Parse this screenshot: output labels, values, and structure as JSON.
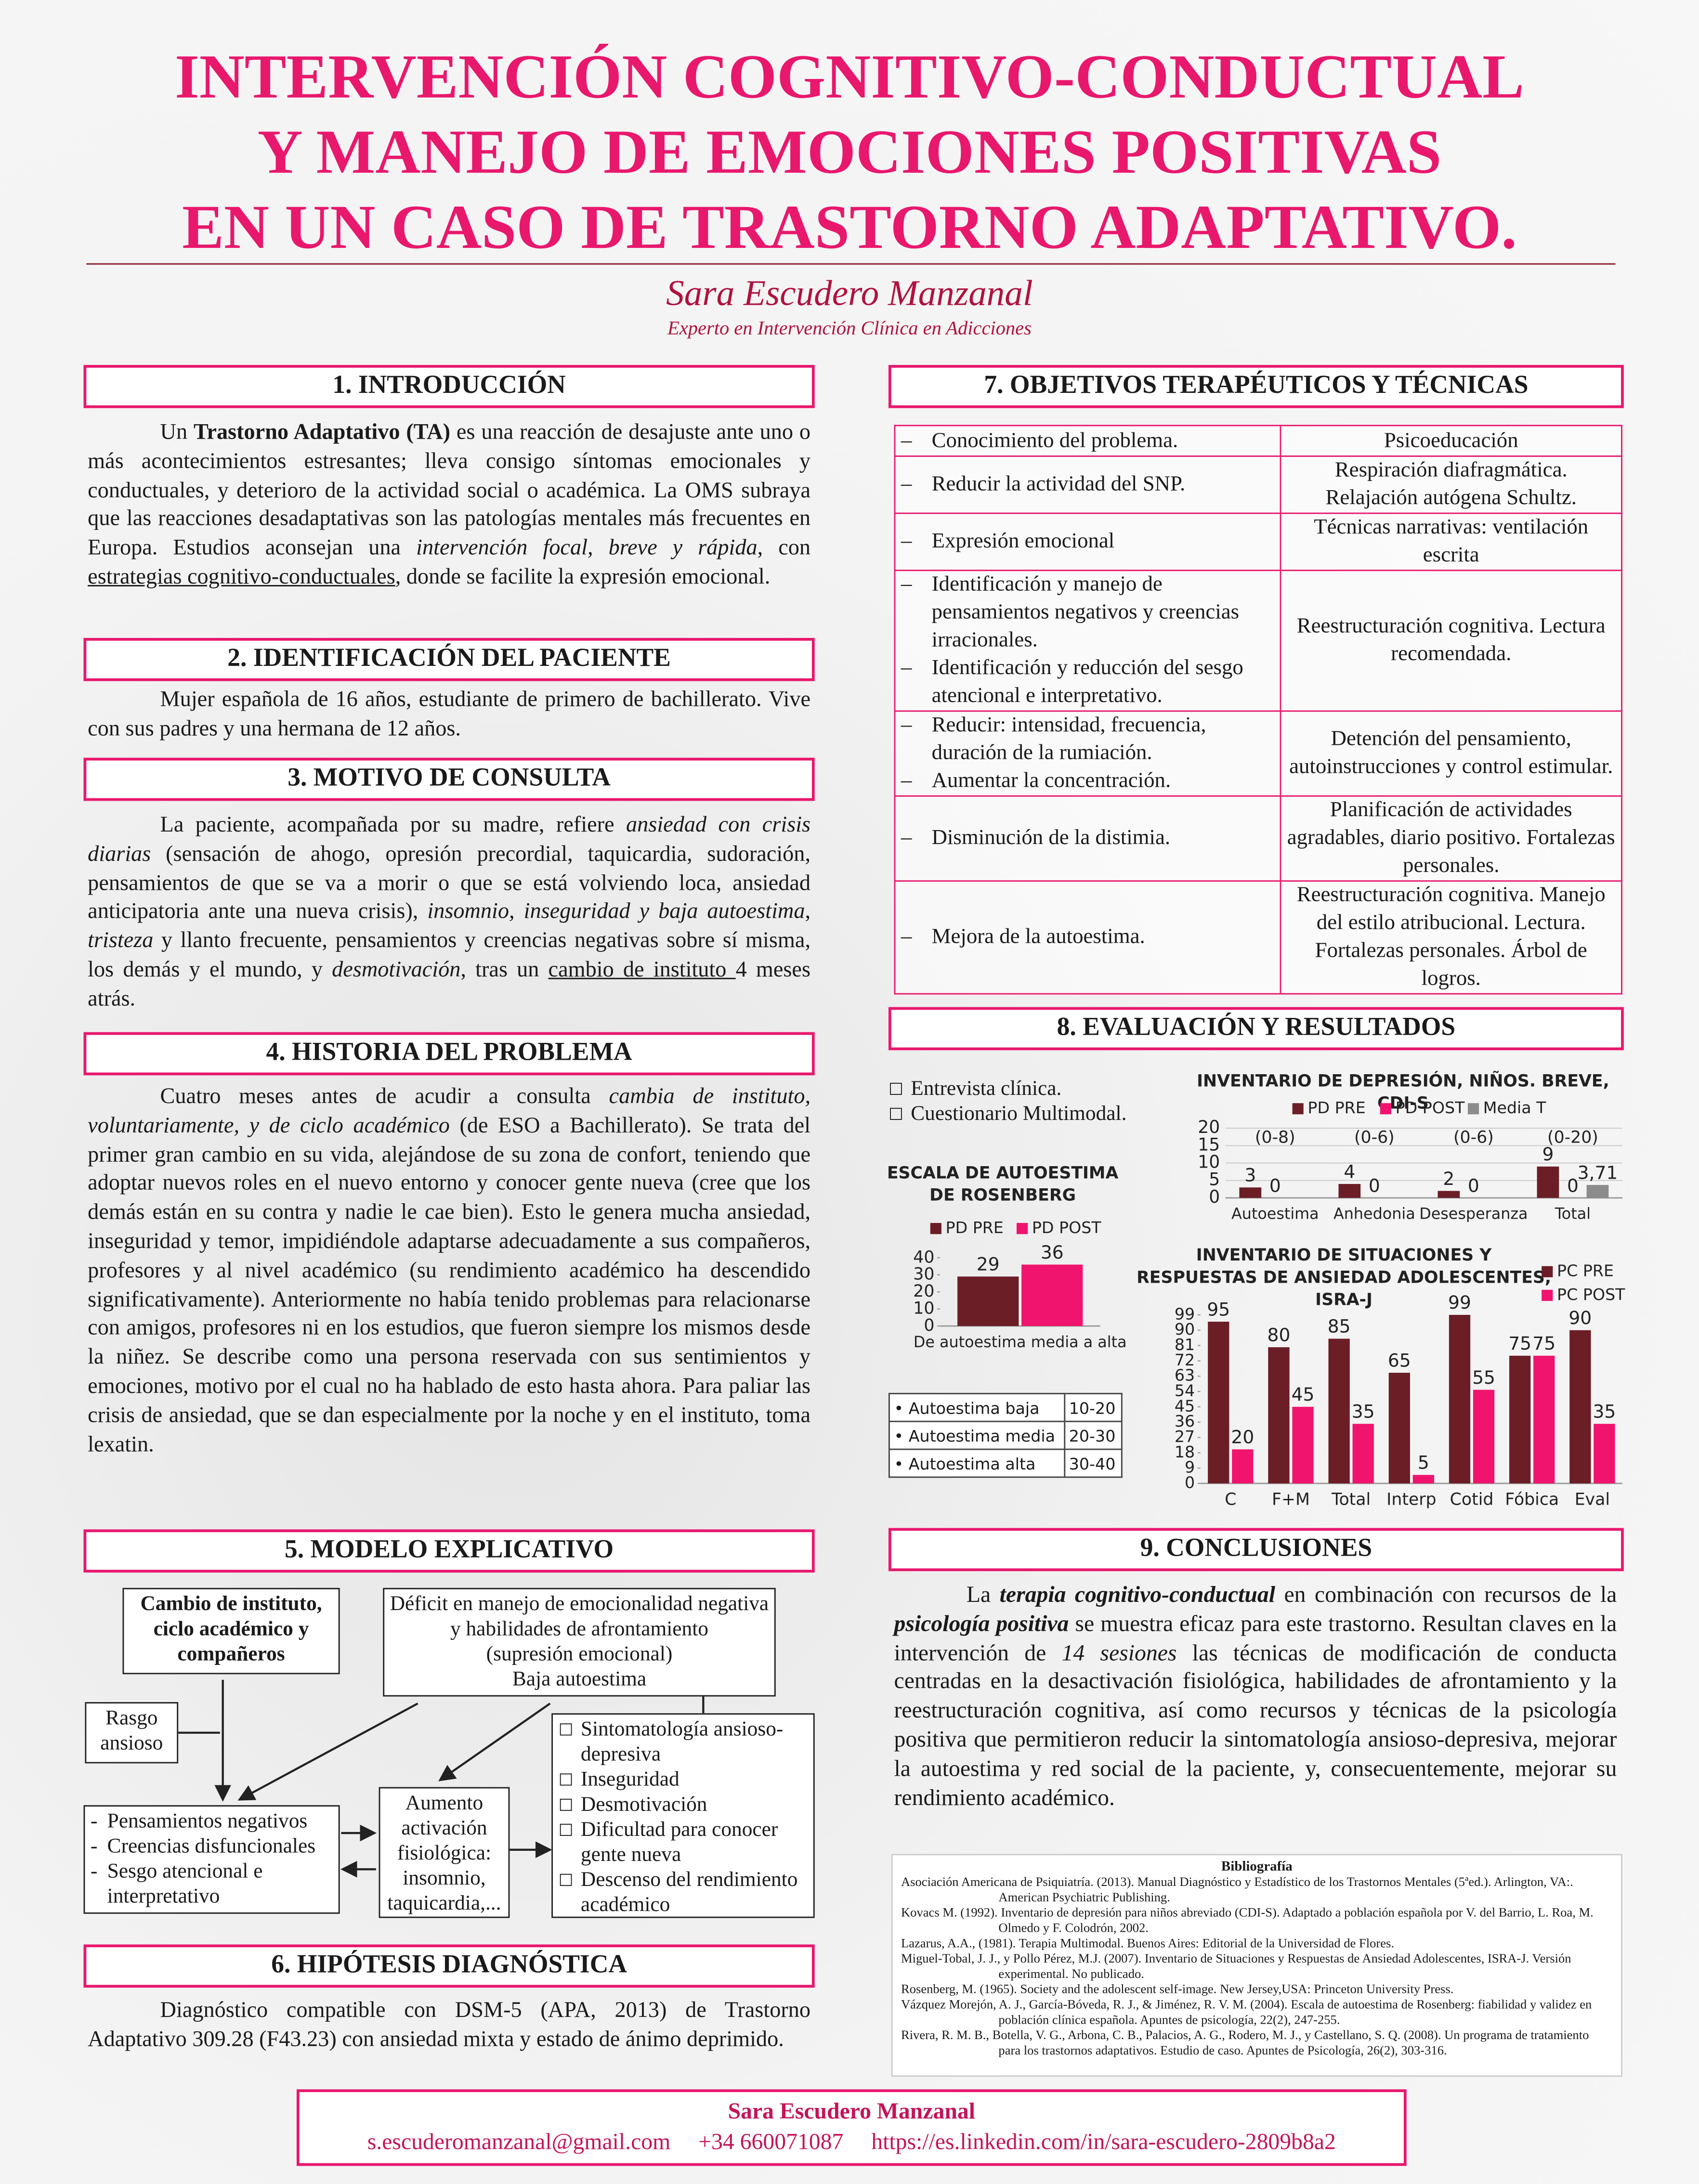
{
  "header": {
    "title_lines": [
      "INTERVENCIÓN COGNITIVO-CONDUCTUAL",
      "Y MANEJO DE EMOCIONES POSITIVAS",
      "EN UN CASO DE TRASTORNO ADAPTATIVO."
    ],
    "author": "Sara Escudero Manzanal",
    "affiliation": "Experto en Intervención Clínica en Adicciones"
  },
  "sections": {
    "intro": {
      "heading": "1. INTRODUCCIÓN",
      "runs": [
        "Un ",
        "Trastorno Adaptativo (TA)",
        " es una reacción de desajuste ante uno o más acontecimientos estresantes; lleva consigo  síntomas emocionales y conductuales, y deterioro de la actividad social o académica. La OMS subraya que las reacciones desadaptativas son las patologías mentales más frecuentes en Europa. Estudios aconsejan una ",
        "intervención focal, breve y rápida",
        ", con ",
        "estrategias cognitivo-conductuales",
        ", donde se facilite la expresión emocional."
      ]
    },
    "patient": {
      "heading": "2. IDENTIFICACIÓN DEL PACIENTE",
      "runs": [
        "Mujer española de 16 años, estudiante de primero de bachillerato. Vive con sus padres y una hermana de 12 años."
      ]
    },
    "consult": {
      "heading": "3. MOTIVO DE CONSULTA",
      "runs": [
        "La paciente, acompañada por su madre, refiere ",
        "ansiedad con crisis diarias",
        " (sensación de ahogo, opresión precordial, taquicardia, sudoración, pensamientos de que se va a morir o que se está volviendo loca, ansiedad anticipatoria ante una nueva crisis), ",
        "insomnio, inseguridad y baja autoestima",
        ", ",
        "tristeza",
        " y llanto frecuente, pensamientos y creencias negativas sobre sí misma, los demás y el mundo, y ",
        "desmotivación",
        ", tras un ",
        "cambio de instituto ",
        "4 meses atrás."
      ]
    },
    "history": {
      "heading": "4. HISTORIA DEL PROBLEMA",
      "runs": [
        "Cuatro meses antes de acudir a consulta ",
        "cambia de instituto, voluntariamente, y de ciclo académico",
        " (de ESO a Bachillerato). Se trata del primer gran cambio en su vida, alejándose de su zona de confort, teniendo que adoptar nuevos roles en el nuevo entorno y conocer gente nueva (cree que los demás están en su contra y nadie le cae bien). Esto le genera mucha ansiedad, inseguridad y temor, impidiéndole adaptarse adecuadamente a sus compañeros, profesores y al nivel académico (su rendimiento académico ha descendido significativamente). Anteriormente no había tenido problemas para relacionarse con amigos, profesores ni en los estudios, que fueron siempre los mismos desde la niñez. Se describe como una persona reservada con sus sentimientos y emociones, motivo por el cual no ha hablado de esto hasta ahora. Para paliar las crisis de ansiedad, que se dan especialmente por la noche y en el instituto, toma lexatin."
      ]
    },
    "model": {
      "heading": "5. MODELO EXPLICATIVO",
      "box_change": "Cambio de instituto, ciclo académico y compañeros",
      "box_deficit": [
        "Déficit en manejo de emocionalidad negativa y habilidades de afrontamiento",
        "(supresión emocional)",
        "Baja autoestima"
      ],
      "box_trait": "Rasgo ansioso",
      "box_thoughts": [
        "Pensamientos negativos",
        "Creencias disfuncionales",
        "Sesgo atencional e interpretativo"
      ],
      "box_activation": "Aumento activación fisiológica: insomnio, taquicardia,...",
      "box_symptoms": [
        "Sintomatología ansioso-depresiva",
        "Inseguridad",
        "Desmotivación",
        "Dificultad para conocer gente nueva",
        "Descenso del rendimiento académico"
      ]
    },
    "hypothesis": {
      "heading": "6. HIPÓTESIS DIAGNÓSTICA",
      "runs": [
        "Diagnóstico compatible con DSM-5 (APA, 2013) de Trastorno Adaptativo 309.28 (F43.23) con ansiedad mixta y estado de ánimo deprimido."
      ]
    },
    "objectives": {
      "heading": "7. OBJETIVOS TERAPÉUTICOS Y TÉCNICAS",
      "rows": [
        {
          "goals": [
            "Conocimiento del problema."
          ],
          "technique": "Psicoeducación"
        },
        {
          "goals": [
            "Reducir la actividad del SNP."
          ],
          "technique": "Respiración diafragmática. Relajación autógena Schultz."
        },
        {
          "goals": [
            "Expresión emocional"
          ],
          "technique": "Técnicas narrativas: ventilación escrita"
        },
        {
          "goals": [
            "Identificación y manejo de pensamientos negativos y creencias irracionales.",
            "Identificación y reducción del sesgo atencional e interpretativo."
          ],
          "technique": "Reestructuración cognitiva. Lectura recomendada."
        },
        {
          "goals": [
            "Reducir: intensidad, frecuencia, duración de la rumiación.",
            "Aumentar la concentración."
          ],
          "technique": "Detención del pensamiento, autoinstrucciones y control estimular."
        },
        {
          "goals": [
            "Disminución de la distimia."
          ],
          "technique": "Planificación de actividades agradables, diario positivo. Fortalezas personales."
        },
        {
          "goals": [
            "Mejora de la autoestima."
          ],
          "technique": "Reestructuración cognitiva. Manejo del estilo atribucional. Lectura. Fortalezas personales. Árbol de logros."
        }
      ]
    },
    "evaluation": {
      "heading": "8. EVALUACIÓN Y RESULTADOS",
      "instruments": [
        "Entrevista clínica.",
        "Cuestionario Multimodal."
      ]
    },
    "conclusions": {
      "heading": "9. CONCLUSIONES",
      "runs": [
        "La ",
        "terapia cognitivo-conductual",
        " en combinación con recursos de la ",
        "psicología positiva",
        " se muestra eficaz para este trastorno. Resultan claves en la intervención de ",
        "14 sesiones",
        " las técnicas de modificación de conducta centradas en la desactivación fisiológica, habilidades de afrontamiento y la reestructuración cognitiva, así como recursos y técnicas de la psicología positiva que permitieron reducir la sintomatología ansioso-depresiva, mejorar la autoestima y red social de la paciente, y, consecuentemente, mejorar su rendimiento académico."
      ]
    }
  },
  "chart_data": [
    {
      "type": "bar",
      "title": "ESCALA DE AUTOESTIMA DE ROSENBERG",
      "categories": [
        "De autoestima media a alta"
      ],
      "series": [
        {
          "name": "PD PRE",
          "color": "#6b1e26",
          "values": [
            29
          ]
        },
        {
          "name": "PD POST",
          "color": "#f0146e",
          "values": [
            36
          ]
        }
      ],
      "ylim": [
        0,
        40
      ],
      "yticks": [
        0,
        10,
        20,
        30,
        40
      ],
      "grid": false,
      "legend": "top",
      "table": {
        "rows": [
          [
            "Autoestima baja",
            "10-20"
          ],
          [
            "Autoestima media",
            "20-30"
          ],
          [
            "Autoestima alta",
            "30-40"
          ]
        ]
      }
    },
    {
      "type": "bar",
      "title": "INVENTARIO DE DEPRESIÓN, NIÑOS. BREVE, CDI-S",
      "categories": [
        "Autoestima",
        "Anhedonia",
        "Desesperanza",
        "Total"
      ],
      "range_labels": [
        "(0-8)",
        "(0-6)",
        "(0-6)",
        "(0-20)"
      ],
      "series": [
        {
          "name": "PD PRE",
          "color": "#6b1e26",
          "values": [
            3,
            4,
            2,
            9
          ]
        },
        {
          "name": "PD POST",
          "color": "#f0146e",
          "values": [
            0,
            0,
            0,
            0
          ]
        },
        {
          "name": "Media T",
          "color": "#8c8c8c",
          "values": [
            null,
            null,
            null,
            3.71
          ],
          "value_labels": [
            null,
            null,
            null,
            "3,71"
          ]
        }
      ],
      "ylim": [
        0,
        20
      ],
      "yticks": [
        0,
        5,
        10,
        15,
        20
      ],
      "grid": true,
      "legend": "top"
    },
    {
      "type": "bar",
      "title": "INVENTARIO DE SITUACIONES Y RESPUESTAS DE ANSIEDAD ADOLESCENTES, ISRA-J",
      "categories": [
        "C",
        "F+M",
        "Total",
        "Interp",
        "Cotid",
        "Fóbica",
        "Eval"
      ],
      "series": [
        {
          "name": "PC PRE",
          "color": "#6b1e26",
          "values": [
            95,
            80,
            85,
            65,
            99,
            75,
            90
          ]
        },
        {
          "name": "PC POST",
          "color": "#f0146e",
          "values": [
            20,
            45,
            35,
            5,
            55,
            75,
            35
          ]
        }
      ],
      "ylim": [
        0,
        99
      ],
      "yticks": [
        0,
        9,
        18,
        27,
        36,
        45,
        54,
        63,
        72,
        81,
        90,
        99
      ],
      "grid": false,
      "legend": "top-right"
    }
  ],
  "bibliography": {
    "title": "Bibliografía",
    "entries": [
      "Asociación Americana de Psiquiatría. (2013). Manual Diagnóstico y Estadístico de los Trastornos Mentales (5ªed.). Arlington, VA:. American Psychiatric Publishing.",
      "Kovacs M. (1992). Inventario de depresión para niños abreviado (CDI-S). Adaptado a población española por V. del Barrio, L. Roa, M. Olmedo y F. Colodrón, 2002.",
      "Lazarus, A.A., (1981). Terapia Multimodal. Buenos Aires: Editorial de la Universidad de Flores.",
      "Miguel-Tobal, J. J., y Pollo Pérez, M.J. (2007). Inventario de Situaciones y Respuestas de Ansiedad Adolescentes, ISRA-J. Versión experimental. No publicado.",
      "Rosenberg, M. (1965). Society and the adolescent self-image. New Jersey,USA: Princeton University Press.",
      "Vázquez Morejón, A. J., García-Bóveda, R. J., & Jiménez, R. V. M. (2004). Escala de autoestima de Rosenberg: fiabilidad y validez en población clínica española. Apuntes de psicología, 22(2), 247-255.",
      "Rivera, R. M. B., Botella, V. G., Arbona, C. B., Palacios, A. G., Rodero, M. J., y Castellano, S. Q. (2008). Un programa de tratamiento para los trastornos adaptativos. Estudio de caso. Apuntes de Psicología, 26(2), 303-316."
    ]
  },
  "footer": {
    "name": "Sara Escudero Manzanal",
    "email": "s.escuderomanzanal@gmail.com",
    "phone": "+34 660071087",
    "web": "https://es.linkedin.com/in/sara-escudero-2809b8a2"
  }
}
